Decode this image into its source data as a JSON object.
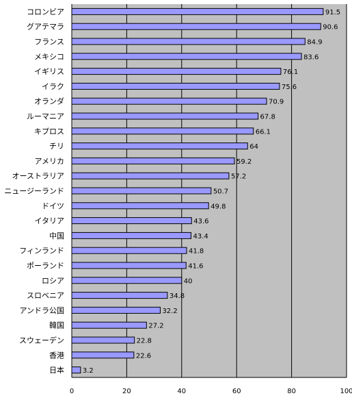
{
  "chart_data": {
    "type": "bar",
    "orientation": "horizontal",
    "categories": [
      "コロンビア",
      "グアテマラ",
      "フランス",
      "メキシコ",
      "イギリス",
      "イラク",
      "オランダ",
      "ルーマニア",
      "キプロス",
      "チリ",
      "アメリカ",
      "オーストラリア",
      "ニュージーランド",
      "ドイツ",
      "イタリア",
      "中国",
      "フィンランド",
      "ポーランド",
      "ロシア",
      "スロベニア",
      "アンドラ公国",
      "韓国",
      "スウェーデン",
      "香港",
      "日本"
    ],
    "values": [
      91.5,
      90.6,
      84.9,
      83.6,
      76.1,
      75.6,
      70.9,
      67.8,
      66.1,
      64,
      59.2,
      57.2,
      50.7,
      49.8,
      43.6,
      43.4,
      41.8,
      41.6,
      40,
      34.8,
      32.2,
      27.2,
      22.8,
      22.6,
      3.2
    ],
    "value_labels": [
      "91.5",
      "90.6",
      "84.9",
      "83.6",
      "76.1",
      "75.6",
      "70.9",
      "67.8",
      "66.1",
      "64",
      "59.2",
      "57.2",
      "50.7",
      "49.8",
      "43.6",
      "43.4",
      "41.8",
      "41.6",
      "40",
      "34.8",
      "32.2",
      "27.2",
      "22.8",
      "22.6",
      "3.2"
    ],
    "xlim": [
      0,
      100
    ],
    "x_ticks": [
      "0",
      "20",
      "40",
      "60",
      "80",
      "100"
    ],
    "title": "",
    "xlabel": "",
    "ylabel": "",
    "grid": "vertical lines at major ticks",
    "legend": "none",
    "colors": {
      "plot_bg": "#c0c0c0",
      "bar_fill": "#9999ff",
      "bar_stroke": "#000000",
      "grid": "#000000"
    }
  }
}
